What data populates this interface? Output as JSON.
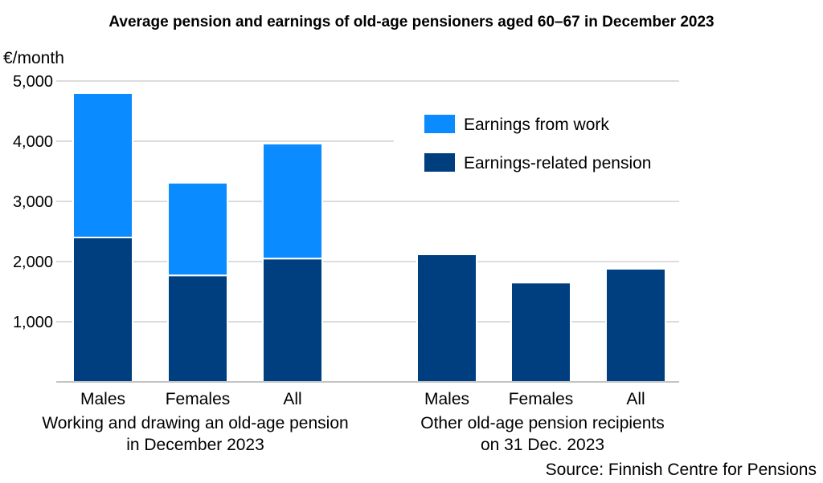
{
  "chart_data": {
    "type": "bar",
    "stacked": true,
    "title": "Average pension and earnings of old-age pensioners aged 60–67 in December 2023",
    "ylabel": "€/month",
    "ylim": [
      0,
      5000
    ],
    "yticks": [
      "1,000",
      "2,000",
      "3,000",
      "4,000",
      "5,000"
    ],
    "ytick_values": [
      1000,
      2000,
      3000,
      4000,
      5000
    ],
    "grid": true,
    "legend_position": "top-right",
    "groups": [
      {
        "label_lines": [
          "Working and drawing an old-age pension",
          "in December 2023"
        ],
        "categories": [
          "Males",
          "Females",
          "All"
        ]
      },
      {
        "label_lines": [
          "Other old-age pension recipients",
          "on 31 Dec. 2023"
        ],
        "categories": [
          "Males",
          "Females",
          "All"
        ]
      }
    ],
    "series": [
      {
        "name": "Earnings-related pension",
        "color": "#003f7f",
        "values": [
          2400,
          1770,
          2050,
          2120,
          1650,
          1880
        ]
      },
      {
        "name": "Earnings from work",
        "color": "#0a8bff",
        "values": [
          2400,
          1540,
          1910,
          0,
          0,
          0
        ]
      }
    ],
    "legend_order": [
      1,
      0
    ],
    "source": "Source: Finnish Centre for Pensions"
  }
}
